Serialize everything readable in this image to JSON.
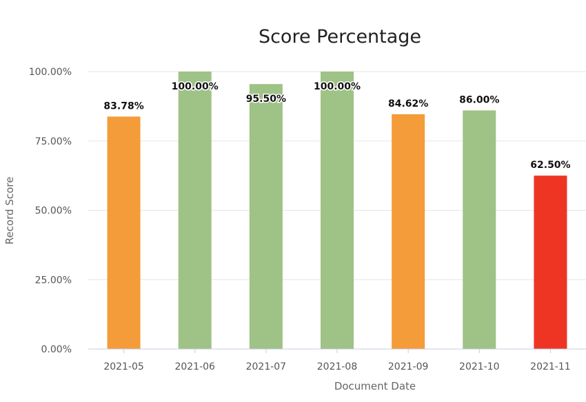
{
  "chart_data": {
    "type": "bar",
    "title": "Score Percentage",
    "xlabel": "Document Date",
    "ylabel": "Record Score",
    "categories": [
      "2021-05",
      "2021-06",
      "2021-07",
      "2021-08",
      "2021-09",
      "2021-10",
      "2021-11"
    ],
    "values": [
      83.78,
      100.0,
      95.5,
      100.0,
      84.62,
      86.0,
      62.5
    ],
    "data_labels": [
      "83.78%",
      "100.00%",
      "95.50%",
      "100.00%",
      "84.62%",
      "86.00%",
      "62.50%"
    ],
    "bar_colors": [
      "#f39c39",
      "#9fc286",
      "#9fc286",
      "#9fc286",
      "#f39c39",
      "#9fc286",
      "#ee3524"
    ],
    "ylim": [
      0,
      100
    ],
    "yticks": [
      0,
      25,
      50,
      75,
      100
    ],
    "ytick_labels": [
      "0.00%",
      "25.00%",
      "50.00%",
      "75.00%",
      "100.00%"
    ],
    "grid": true,
    "legend": "none"
  }
}
